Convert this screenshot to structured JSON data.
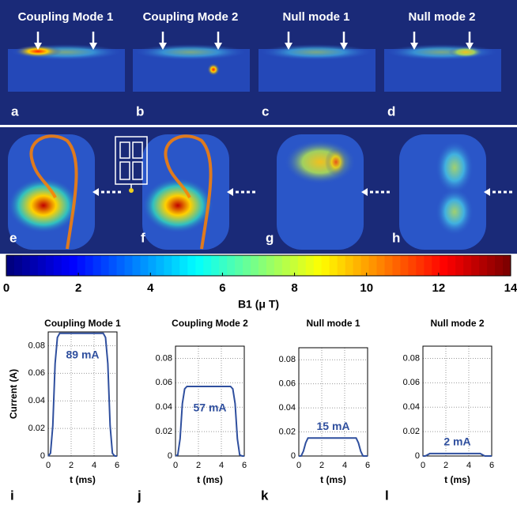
{
  "figure": {
    "top_panels": [
      {
        "title": "Coupling Mode 1",
        "letter": "a"
      },
      {
        "title": "Coupling Mode 2",
        "letter": "b"
      },
      {
        "title": "Null mode 1",
        "letter": "c"
      },
      {
        "title": "Null mode 2",
        "letter": "d"
      }
    ],
    "bottom_letters": [
      "e",
      "f",
      "g",
      "h"
    ]
  },
  "chart_data": [
    {
      "type": "colorbar",
      "xlabel": "B1 (μ T)",
      "colormap": "jet",
      "xlim": [
        0,
        14
      ],
      "xticks": [
        0,
        2,
        4,
        6,
        8,
        10,
        12,
        14
      ]
    },
    {
      "type": "line",
      "title": "Coupling Mode 1",
      "ylabel": "Current (A)",
      "xlabel": "t (ms)",
      "letter": "i",
      "annotation": "89 mA",
      "color": "#2f4f9e",
      "grid": true,
      "x": [
        0,
        0.2,
        0.4,
        0.6,
        0.8,
        1,
        2,
        3,
        4,
        4.8,
        5,
        5.2,
        5.4,
        5.6,
        5.8,
        6
      ],
      "values": [
        0,
        0.002,
        0.022,
        0.067,
        0.086,
        0.089,
        0.089,
        0.089,
        0.089,
        0.089,
        0.086,
        0.067,
        0.022,
        0.002,
        0,
        0
      ],
      "xlim": [
        0,
        6
      ],
      "xticks": [
        0,
        2,
        4,
        6
      ],
      "ylim": [
        0,
        0.09
      ],
      "yticks": [
        0,
        0.02,
        0.04,
        0.06,
        0.08
      ]
    },
    {
      "type": "line",
      "title": "Coupling Mode 2",
      "xlabel": "t (ms)",
      "letter": "j",
      "annotation": "57 mA",
      "color": "#2f4f9e",
      "grid": true,
      "x": [
        0,
        0.2,
        0.4,
        0.6,
        0.8,
        1,
        2,
        3,
        4,
        4.8,
        5,
        5.2,
        5.4,
        5.6,
        5.8,
        6
      ],
      "values": [
        0,
        0.001,
        0.014,
        0.043,
        0.055,
        0.057,
        0.057,
        0.057,
        0.057,
        0.057,
        0.055,
        0.043,
        0.014,
        0.001,
        0,
        0
      ],
      "xlim": [
        0,
        6
      ],
      "xticks": [
        0,
        2,
        4,
        6
      ],
      "ylim": [
        0,
        0.09
      ],
      "yticks": [
        0,
        0.02,
        0.04,
        0.06,
        0.08
      ]
    },
    {
      "type": "line",
      "title": "Null mode 1",
      "xlabel": "t (ms)",
      "letter": "k",
      "annotation": "15 mA",
      "color": "#2f4f9e",
      "grid": true,
      "x": [
        0,
        0.2,
        0.4,
        0.6,
        0.8,
        1,
        2,
        3,
        4,
        4.8,
        5,
        5.2,
        5.4,
        5.6,
        5.8,
        6
      ],
      "values": [
        0,
        0,
        0.004,
        0.011,
        0.015,
        0.015,
        0.015,
        0.015,
        0.015,
        0.015,
        0.015,
        0.011,
        0.004,
        0,
        0,
        0
      ],
      "xlim": [
        0,
        6
      ],
      "xticks": [
        0,
        2,
        4,
        6
      ],
      "ylim": [
        0,
        0.09
      ],
      "yticks": [
        0,
        0.02,
        0.04,
        0.06,
        0.08
      ]
    },
    {
      "type": "line",
      "title": "Null mode 2",
      "xlabel": "t (ms)",
      "letter": "l",
      "annotation": "2 mA",
      "color": "#2f4f9e",
      "grid": true,
      "x": [
        0,
        0.2,
        0.4,
        0.6,
        0.8,
        1,
        2,
        3,
        4,
        4.8,
        5,
        5.2,
        5.4,
        5.6,
        5.8,
        6
      ],
      "values": [
        0,
        0,
        0.001,
        0.002,
        0.002,
        0.002,
        0.002,
        0.002,
        0.002,
        0.002,
        0.002,
        0.001,
        0,
        0,
        0,
        0
      ],
      "xlim": [
        0,
        6
      ],
      "xticks": [
        0,
        2,
        4,
        6
      ],
      "ylim": [
        0,
        0.09
      ],
      "yticks": [
        0,
        0.02,
        0.04,
        0.06,
        0.08
      ]
    }
  ]
}
